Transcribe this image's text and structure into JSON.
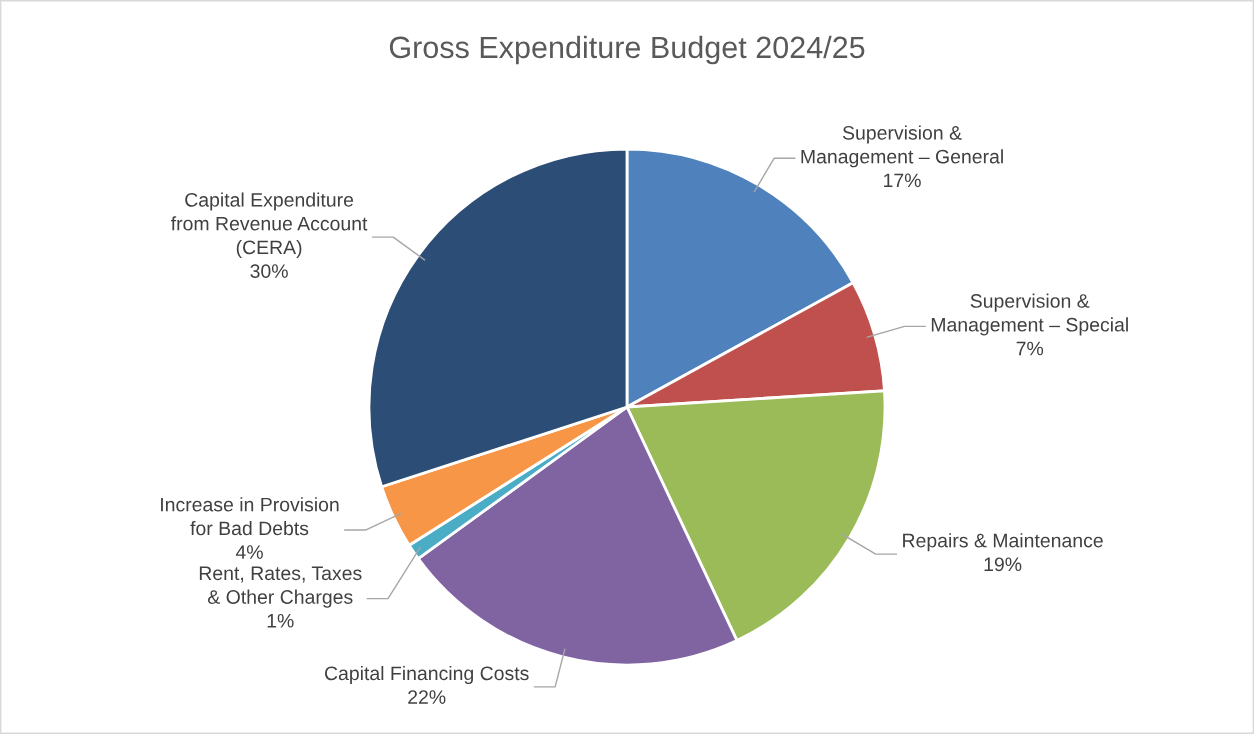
{
  "chart_data": {
    "type": "pie",
    "title": "Gross Expenditure Budget 2024/25",
    "categories": [
      "Supervision &\nManagement – General",
      "Supervision &\nManagement – Special",
      "Repairs & Maintenance",
      "Capital Financing Costs",
      "Rent, Rates, Taxes\n& Other Charges",
      "Increase in Provision\nfor Bad Debts",
      "Capital Expenditure\nfrom Revenue Account\n(CERA)"
    ],
    "values": [
      17,
      7,
      19,
      22,
      1,
      4,
      30
    ],
    "value_labels": [
      "17%",
      "7%",
      "19%",
      "22%",
      "1%",
      "4%",
      "30%"
    ],
    "colors": [
      "#4f81bd",
      "#c0504d",
      "#9bbb59",
      "#8064a2",
      "#4bacc6",
      "#f79646",
      "#2c4d75"
    ],
    "legend": false
  }
}
